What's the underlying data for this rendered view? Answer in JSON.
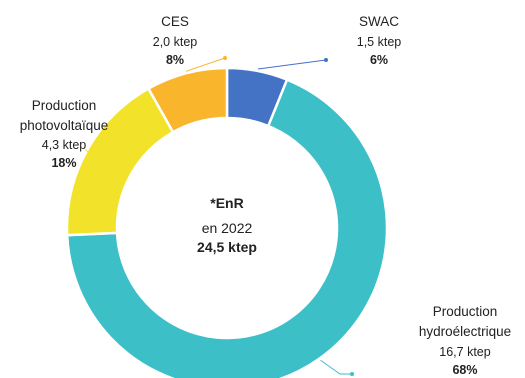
{
  "chart_data": {
    "type": "pie",
    "title": "",
    "center_label": [
      "*EnR",
      "en 2022",
      "24,5 ktep"
    ],
    "slices": [
      {
        "name": "SWAC",
        "label_lines": [
          "SWAC"
        ],
        "value": 1.5,
        "value_text": "1,5 ktep",
        "percent_text": "6%",
        "color": "#4472C4"
      },
      {
        "name": "Production hydroélectrique",
        "label_lines": [
          "Production",
          "hydroélectrique"
        ],
        "value": 16.7,
        "value_text": "16,7 ktep",
        "percent_text": "68%",
        "color": "#3DBFC8"
      },
      {
        "name": "Production photovoltaïque",
        "label_lines": [
          "Production",
          "photovoltaïque"
        ],
        "value": 4.3,
        "value_text": "4,3 ktep",
        "percent_text": "18%",
        "color": "#F2E22A"
      },
      {
        "name": "CES",
        "label_lines": [
          "CES"
        ],
        "value": 2.0,
        "value_text": "2,0 ktep",
        "percent_text": "8%",
        "color": "#F9B62C"
      }
    ]
  }
}
